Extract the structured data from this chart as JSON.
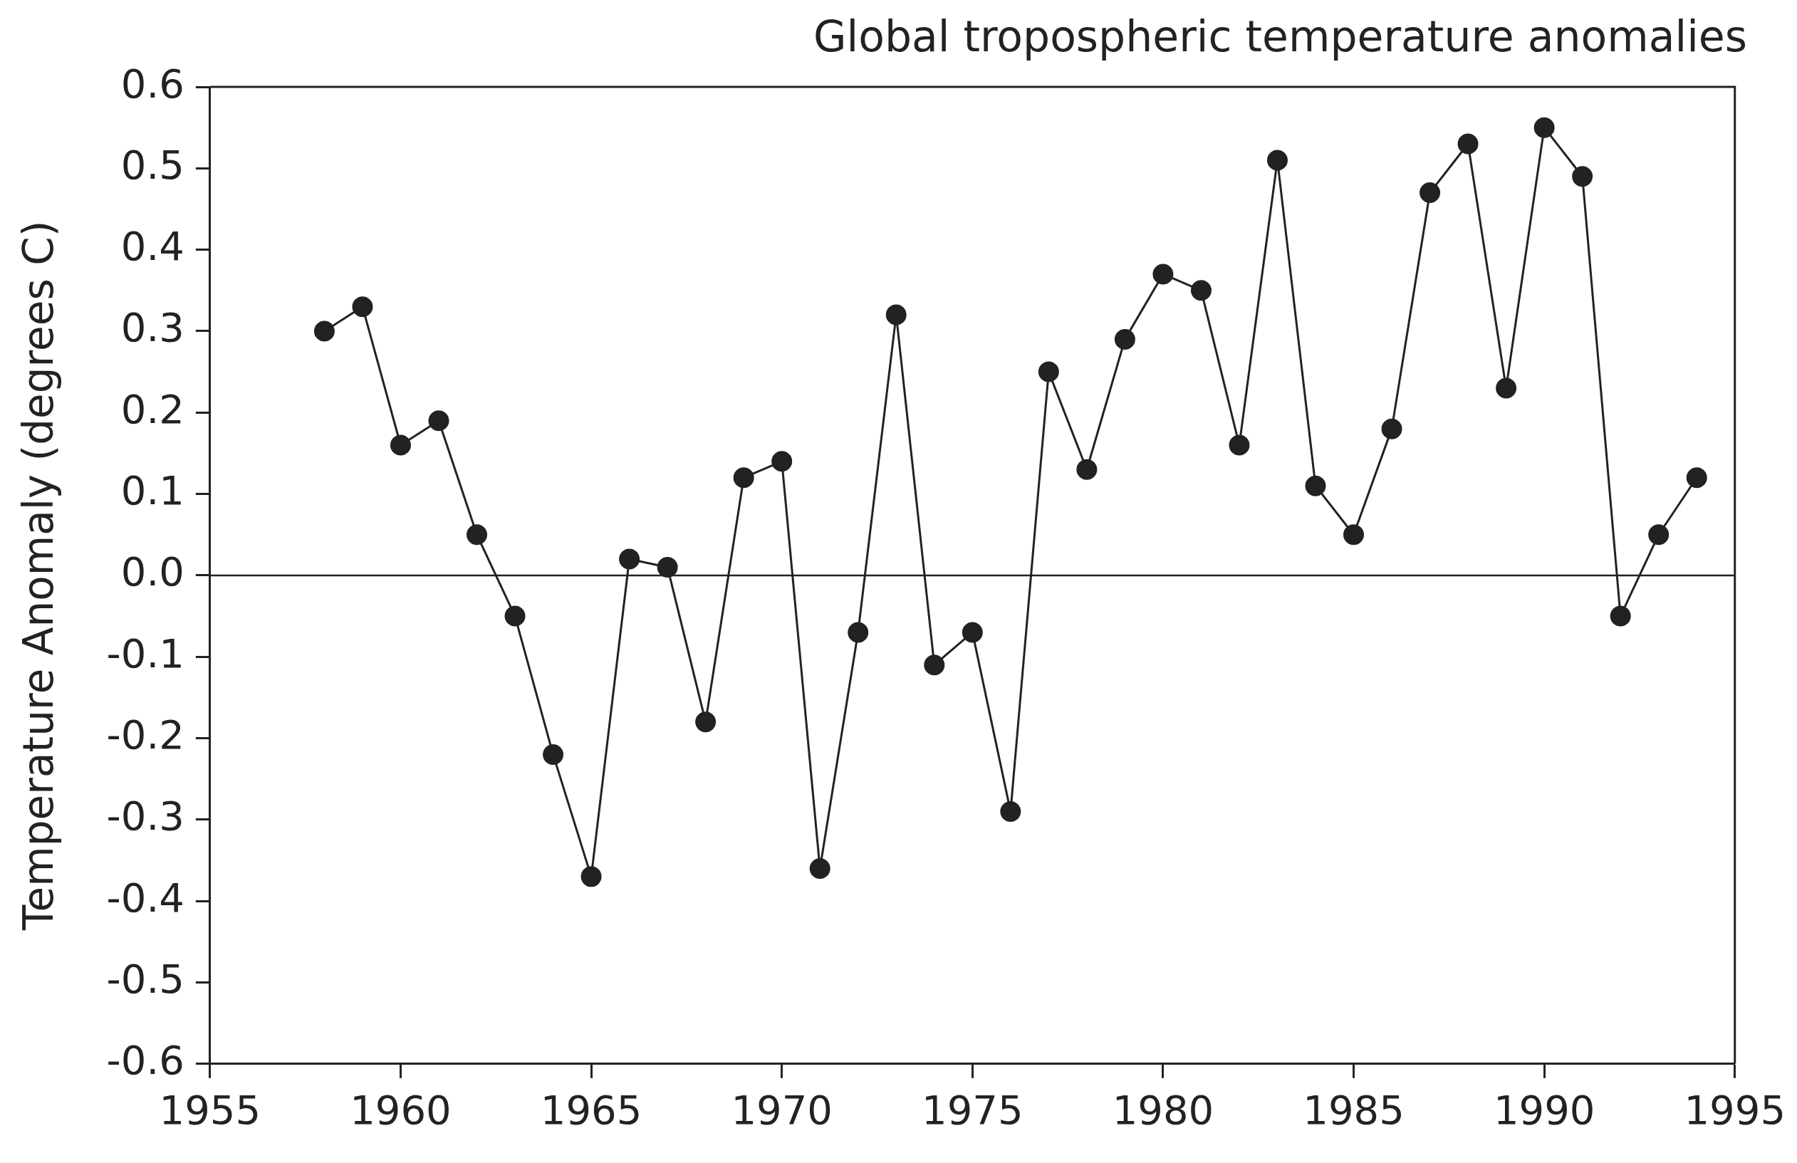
{
  "chart_data": {
    "type": "line",
    "title": "Global tropospheric temperature anomalies",
    "ylabel": "Temperature Anomaly (degrees C)",
    "x": [
      1958,
      1959,
      1960,
      1961,
      1962,
      1963,
      1964,
      1965,
      1966,
      1967,
      1968,
      1969,
      1970,
      1971,
      1972,
      1973,
      1974,
      1975,
      1976,
      1977,
      1978,
      1979,
      1980,
      1981,
      1982,
      1983,
      1984,
      1985,
      1986,
      1987,
      1988,
      1989,
      1990,
      1991,
      1992,
      1993,
      1994
    ],
    "series": [
      {
        "color": "#222222",
        "values": [
          0.3,
          0.33,
          0.16,
          0.19,
          0.05,
          -0.05,
          -0.22,
          -0.37,
          0.02,
          0.01,
          -0.18,
          0.12,
          0.14,
          -0.36,
          -0.07,
          0.32,
          -0.11,
          -0.07,
          -0.29,
          0.25,
          0.13,
          0.29,
          0.37,
          0.35,
          0.16,
          0.51,
          0.11,
          0.05,
          0.18,
          0.47,
          0.53,
          0.23,
          0.55,
          0.49,
          -0.05,
          0.05,
          0.12
        ]
      }
    ],
    "xlim": [
      1955,
      1995
    ],
    "xticks": [
      1955,
      1960,
      1965,
      1970,
      1975,
      1980,
      1985,
      1990,
      1995
    ],
    "ylim": [
      -0.6,
      0.6
    ],
    "yticks": [
      {
        "value": -0.6,
        "label": "-0.6"
      },
      {
        "value": -0.5,
        "label": "-0.5"
      },
      {
        "value": -0.4,
        "label": "-0.4"
      },
      {
        "value": -0.3,
        "label": "-0.3"
      },
      {
        "value": -0.2,
        "label": "-0.2"
      },
      {
        "value": -0.1,
        "label": "-0.1"
      },
      {
        "value": 0,
        "label": "0.0"
      },
      {
        "value": 0.1,
        "label": "0.1"
      },
      {
        "value": 0.2,
        "label": "0.2"
      },
      {
        "value": 0.3,
        "label": "0.3"
      },
      {
        "value": 0.4,
        "label": "0.4"
      },
      {
        "value": 0.5,
        "label": "0.5"
      },
      {
        "value": 0.6,
        "label": "0.6"
      }
    ],
    "ref_lines": [
      {
        "axis": "y",
        "value": 0,
        "color": "#222222"
      }
    ],
    "marker": "circle",
    "line_style": "solid",
    "grid": false,
    "legend": false
  }
}
